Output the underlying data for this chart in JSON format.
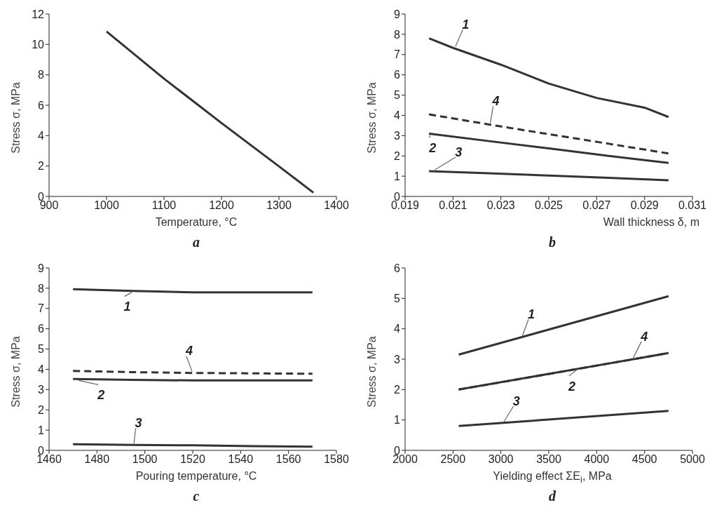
{
  "chart_data": [
    {
      "type": "line",
      "title": "a",
      "xlabel": "Temperature, °C",
      "ylabel": "Stress σ, MPa",
      "xlim": [
        900,
        1400
      ],
      "xticks": [
        900,
        1000,
        1100,
        1200,
        1300,
        1400
      ],
      "ylim": [
        0,
        12
      ],
      "yticks": [
        0,
        2,
        4,
        6,
        8,
        10,
        12
      ],
      "grid": false,
      "legend": false,
      "marker": "none",
      "line_style": "solid",
      "series": [
        {
          "color": "#333333",
          "x": [
            1000,
            1100,
            1200,
            1300,
            1360
          ],
          "values": [
            10.85,
            7.75,
            4.83,
            1.98,
            0.25
          ]
        }
      ]
    },
    {
      "type": "line",
      "title": "b",
      "xlabel": "Wall thickness δ, m",
      "ylabel": "Stress σ, MPa",
      "xlim": [
        0.019,
        0.031
      ],
      "xticks": [
        0.019,
        0.021,
        0.023,
        0.025,
        0.027,
        0.029,
        0.031
      ],
      "ylim": [
        0,
        9
      ],
      "yticks": [
        0,
        1,
        2,
        3,
        4,
        5,
        6,
        7,
        8,
        9
      ],
      "grid": false,
      "legend": false,
      "marker": "none",
      "line_style": "solid",
      "series": [
        {
          "name": "1",
          "color": "#333333",
          "x": [
            0.02,
            0.021,
            0.023,
            0.025,
            0.027,
            0.029,
            0.03
          ],
          "values": [
            7.8,
            7.33,
            6.5,
            5.57,
            4.86,
            4.38,
            3.92
          ]
        },
        {
          "name": "2",
          "color": "#333333",
          "x": [
            0.02,
            0.0225,
            0.025,
            0.0275,
            0.03
          ],
          "values": [
            3.1,
            2.73,
            2.37,
            2.0,
            1.65
          ]
        },
        {
          "name": "3",
          "color": "#333333",
          "x": [
            0.02,
            0.0225,
            0.025,
            0.0275,
            0.03
          ],
          "values": [
            1.25,
            1.14,
            1.03,
            0.92,
            0.8
          ]
        },
        {
          "name": "4",
          "color": "#333333",
          "line_style": "dashed",
          "x": [
            0.02,
            0.0225,
            0.025,
            0.0275,
            0.03
          ],
          "values": [
            4.05,
            3.55,
            3.07,
            2.6,
            2.12
          ]
        }
      ]
    },
    {
      "type": "line",
      "title": "c",
      "xlabel": "Pouring temperature, °C",
      "ylabel": "Stress σ, MPa",
      "xlim": [
        1460,
        1580
      ],
      "xticks": [
        1460,
        1480,
        1500,
        1520,
        1540,
        1560,
        1580
      ],
      "ylim": [
        0,
        9
      ],
      "yticks": [
        0,
        1,
        2,
        3,
        4,
        5,
        6,
        7,
        8,
        9
      ],
      "grid": false,
      "legend": false,
      "marker": "none",
      "line_style": "solid",
      "series": [
        {
          "name": "1",
          "color": "#333333",
          "x": [
            1470,
            1495,
            1520,
            1545,
            1570
          ],
          "values": [
            7.95,
            7.87,
            7.8,
            7.8,
            7.8
          ]
        },
        {
          "name": "2",
          "color": "#333333",
          "x": [
            1470,
            1495,
            1520,
            1545,
            1570
          ],
          "values": [
            3.52,
            3.48,
            3.45,
            3.45,
            3.45
          ]
        },
        {
          "name": "3",
          "color": "#333333",
          "x": [
            1470,
            1495,
            1520,
            1545,
            1570
          ],
          "values": [
            0.3,
            0.27,
            0.25,
            0.21,
            0.18
          ]
        },
        {
          "name": "4",
          "color": "#333333",
          "line_style": "dashed",
          "x": [
            1470,
            1495,
            1520,
            1545,
            1570
          ],
          "values": [
            3.92,
            3.86,
            3.82,
            3.8,
            3.78
          ]
        }
      ]
    },
    {
      "type": "line",
      "title": "d",
      "xlabel": "Yielding effect ΣE$_{i}$, MPa",
      "ylabel": "Stress σ, MPa",
      "xlim": [
        2000,
        5000
      ],
      "xticks": [
        2000,
        2500,
        3000,
        3500,
        4000,
        4500,
        5000
      ],
      "ylim": [
        0,
        6
      ],
      "yticks": [
        0,
        1,
        2,
        3,
        4,
        5,
        6
      ],
      "grid": false,
      "legend": false,
      "marker": "none",
      "line_style": "solid",
      "series": [
        {
          "name": "1",
          "color": "#333333",
          "x": [
            2560,
            3200,
            4750
          ],
          "values": [
            3.15,
            3.71,
            5.07
          ]
        },
        {
          "name": "2",
          "color": "#333333",
          "x": [
            2560,
            3800,
            4750
          ],
          "values": [
            2.0,
            2.68,
            3.2
          ]
        },
        {
          "name": "3",
          "color": "#333333",
          "x": [
            2560,
            3000,
            4750
          ],
          "values": [
            0.8,
            0.9,
            1.3
          ]
        },
        {
          "name": "4",
          "color": "#333333",
          "line_style": "dashed",
          "x": [
            2560,
            4350,
            4750
          ],
          "values": [
            2.0,
            2.98,
            3.2
          ]
        }
      ]
    }
  ]
}
